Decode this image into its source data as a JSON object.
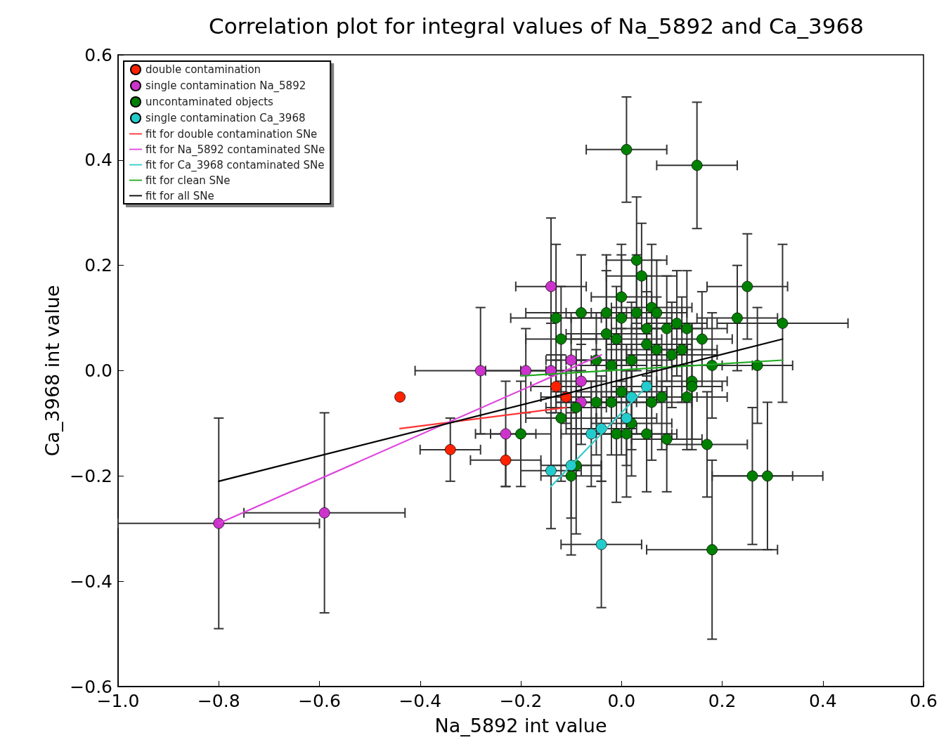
{
  "chart_data": {
    "type": "scatter",
    "title": "Correlation plot for integral values of Na_5892 and Ca_3968",
    "xlabel": "Na_5892 int value",
    "ylabel": "Ca_3968 int value",
    "xlim": [
      -1.0,
      0.6
    ],
    "ylim": [
      -0.6,
      0.6
    ],
    "xticks": [
      {
        "value": -1.0,
        "label": "−1.0"
      },
      {
        "value": -0.8,
        "label": "−0.8"
      },
      {
        "value": -0.6,
        "label": "−0.6"
      },
      {
        "value": -0.4,
        "label": "−0.4"
      },
      {
        "value": -0.2,
        "label": "−0.2"
      },
      {
        "value": 0.0,
        "label": "0.0"
      },
      {
        "value": 0.2,
        "label": "0.2"
      },
      {
        "value": 0.4,
        "label": "0.4"
      },
      {
        "value": 0.6,
        "label": "0.6"
      }
    ],
    "yticks": [
      {
        "value": -0.6,
        "label": "−0.6"
      },
      {
        "value": -0.4,
        "label": "−0.4"
      },
      {
        "value": -0.2,
        "label": "−0.2"
      },
      {
        "value": 0.0,
        "label": "0.0"
      },
      {
        "value": 0.2,
        "label": "0.2"
      },
      {
        "value": 0.4,
        "label": "0.4"
      },
      {
        "value": 0.6,
        "label": "0.6"
      }
    ],
    "grid": false,
    "legend": "top left",
    "line_style": "solid",
    "series": [
      {
        "name": "double contamination",
        "color": "#ff2200",
        "marker": "circle",
        "x": [
          -0.44,
          -0.34,
          -0.23,
          -0.13,
          -0.11
        ],
        "values": [
          -0.05,
          -0.15,
          -0.17,
          -0.03,
          -0.05
        ],
        "xerrors": [
          null,
          0.06,
          0.07,
          0.05,
          0.05
        ],
        "errors": [
          null,
          0.06,
          0.05,
          0.05,
          0.05
        ]
      },
      {
        "name": "single contamination Na_5892",
        "color": "#cc33cc",
        "marker": "circle",
        "x": [
          -0.8,
          -0.59,
          -0.28,
          -0.19,
          -0.14,
          -0.23,
          -0.14,
          -0.1,
          -0.08,
          -0.08
        ],
        "values": [
          -0.29,
          -0.27,
          0.0,
          0.0,
          0.16,
          -0.12,
          0.0,
          0.02,
          -0.02,
          -0.06
        ],
        "xerrors": [
          0.2,
          0.16,
          0.13,
          0.08,
          0.07,
          0.06,
          0.06,
          0.05,
          0.05,
          0.05
        ],
        "errors": [
          0.2,
          0.19,
          0.12,
          0.08,
          0.13,
          0.1,
          0.09,
          0.08,
          0.07,
          0.08
        ]
      },
      {
        "name": "uncontaminated objects",
        "color": "#008000",
        "marker": "circle",
        "x": [
          0.01,
          0.15,
          0.03,
          0.04,
          0.0,
          0.25,
          0.32,
          0.23,
          0.27,
          0.18,
          0.16,
          0.12,
          0.13,
          0.11,
          0.09,
          0.06,
          0.07,
          0.03,
          0.05,
          0.05,
          0.0,
          -0.03,
          -0.08,
          -0.13,
          -0.12,
          -0.03,
          -0.01,
          -0.05,
          -0.02,
          0.02,
          0.07,
          0.1,
          0.14,
          0.14,
          0.13,
          0.08,
          0.06,
          0.0,
          -0.02,
          -0.05,
          -0.09,
          -0.12,
          0.02,
          -0.01,
          0.01,
          0.05,
          0.09,
          -0.2,
          -0.09,
          -0.1,
          0.17,
          0.26,
          0.29,
          0.18
        ],
        "values": [
          0.42,
          0.39,
          0.21,
          0.18,
          0.14,
          0.16,
          0.09,
          0.1,
          0.01,
          0.01,
          0.06,
          0.04,
          0.08,
          0.09,
          0.08,
          0.12,
          0.11,
          0.11,
          0.08,
          0.05,
          0.1,
          0.11,
          0.11,
          0.1,
          0.06,
          0.07,
          0.06,
          0.02,
          0.01,
          0.02,
          0.04,
          0.03,
          -0.02,
          -0.03,
          -0.05,
          -0.05,
          -0.06,
          -0.04,
          -0.06,
          -0.06,
          -0.07,
          -0.09,
          -0.1,
          -0.12,
          -0.12,
          -0.12,
          -0.13,
          -0.12,
          -0.18,
          -0.2,
          -0.14,
          -0.2,
          -0.2,
          -0.34
        ],
        "xerrors": [
          0.08,
          0.08,
          0.06,
          0.07,
          0.06,
          0.08,
          0.13,
          0.08,
          0.07,
          0.08,
          0.06,
          0.07,
          0.08,
          0.06,
          0.07,
          0.08,
          0.06,
          0.09,
          0.07,
          0.08,
          0.1,
          0.08,
          0.11,
          0.09,
          0.07,
          0.08,
          0.09,
          0.06,
          0.07,
          0.08,
          0.06,
          0.09,
          0.07,
          0.06,
          0.08,
          0.07,
          0.08,
          0.09,
          0.07,
          0.08,
          0.06,
          0.07,
          0.08,
          0.07,
          0.09,
          0.06,
          0.07,
          0.06,
          0.05,
          0.06,
          0.08,
          0.08,
          0.11,
          0.13
        ],
        "errors": [
          0.1,
          0.12,
          0.12,
          0.1,
          0.1,
          0.1,
          0.15,
          0.1,
          0.11,
          0.1,
          0.09,
          0.1,
          0.11,
          0.1,
          0.1,
          0.12,
          0.1,
          0.11,
          0.1,
          0.1,
          0.12,
          0.11,
          0.11,
          0.14,
          0.1,
          0.12,
          0.1,
          0.09,
          0.1,
          0.11,
          0.1,
          0.1,
          0.11,
          0.12,
          0.1,
          0.1,
          0.11,
          0.12,
          0.1,
          0.1,
          0.11,
          0.12,
          0.1,
          0.13,
          0.12,
          0.11,
          0.1,
          0.1,
          0.13,
          0.15,
          0.1,
          0.13,
          0.14,
          0.17
        ]
      },
      {
        "name": "single contamination Ca_3968",
        "color": "#22cccc",
        "marker": "circle",
        "x": [
          -0.14,
          -0.04,
          -0.1,
          -0.06,
          -0.04,
          0.01,
          0.02,
          0.05
        ],
        "values": [
          -0.19,
          -0.33,
          -0.18,
          -0.12,
          -0.11,
          -0.09,
          -0.05,
          -0.03
        ],
        "xerrors": [
          0.06,
          0.08,
          0.06,
          0.06,
          0.07,
          0.06,
          0.06,
          0.07
        ],
        "errors": [
          0.11,
          0.12,
          0.1,
          0.1,
          0.1,
          0.09,
          0.1,
          0.1
        ]
      },
      {
        "type": "line",
        "name": "fit for double contamination SNe",
        "color": "#ff3333",
        "marker": "none",
        "x": [
          -0.44,
          -0.11
        ],
        "values": [
          -0.11,
          -0.07
        ]
      },
      {
        "type": "line",
        "name": "fit for Na_5892 contaminated SNe",
        "color": "#dd44dd",
        "marker": "none",
        "x": [
          -0.8,
          -0.04
        ],
        "values": [
          -0.29,
          0.03
        ]
      },
      {
        "type": "line",
        "name": "fit for Ca_3968 contaminated SNe",
        "color": "#33cccc",
        "marker": "none",
        "x": [
          -0.14,
          0.05
        ],
        "values": [
          -0.22,
          -0.03
        ]
      },
      {
        "type": "line",
        "name": "fit for clean SNe",
        "color": "#22aa22",
        "marker": "none",
        "x": [
          -0.2,
          0.32
        ],
        "values": [
          -0.01,
          0.02
        ]
      },
      {
        "type": "line",
        "name": "fit for all SNe",
        "color": "#000000",
        "marker": "none",
        "x": [
          -0.8,
          0.32
        ],
        "values": [
          -0.21,
          0.06
        ]
      }
    ]
  }
}
